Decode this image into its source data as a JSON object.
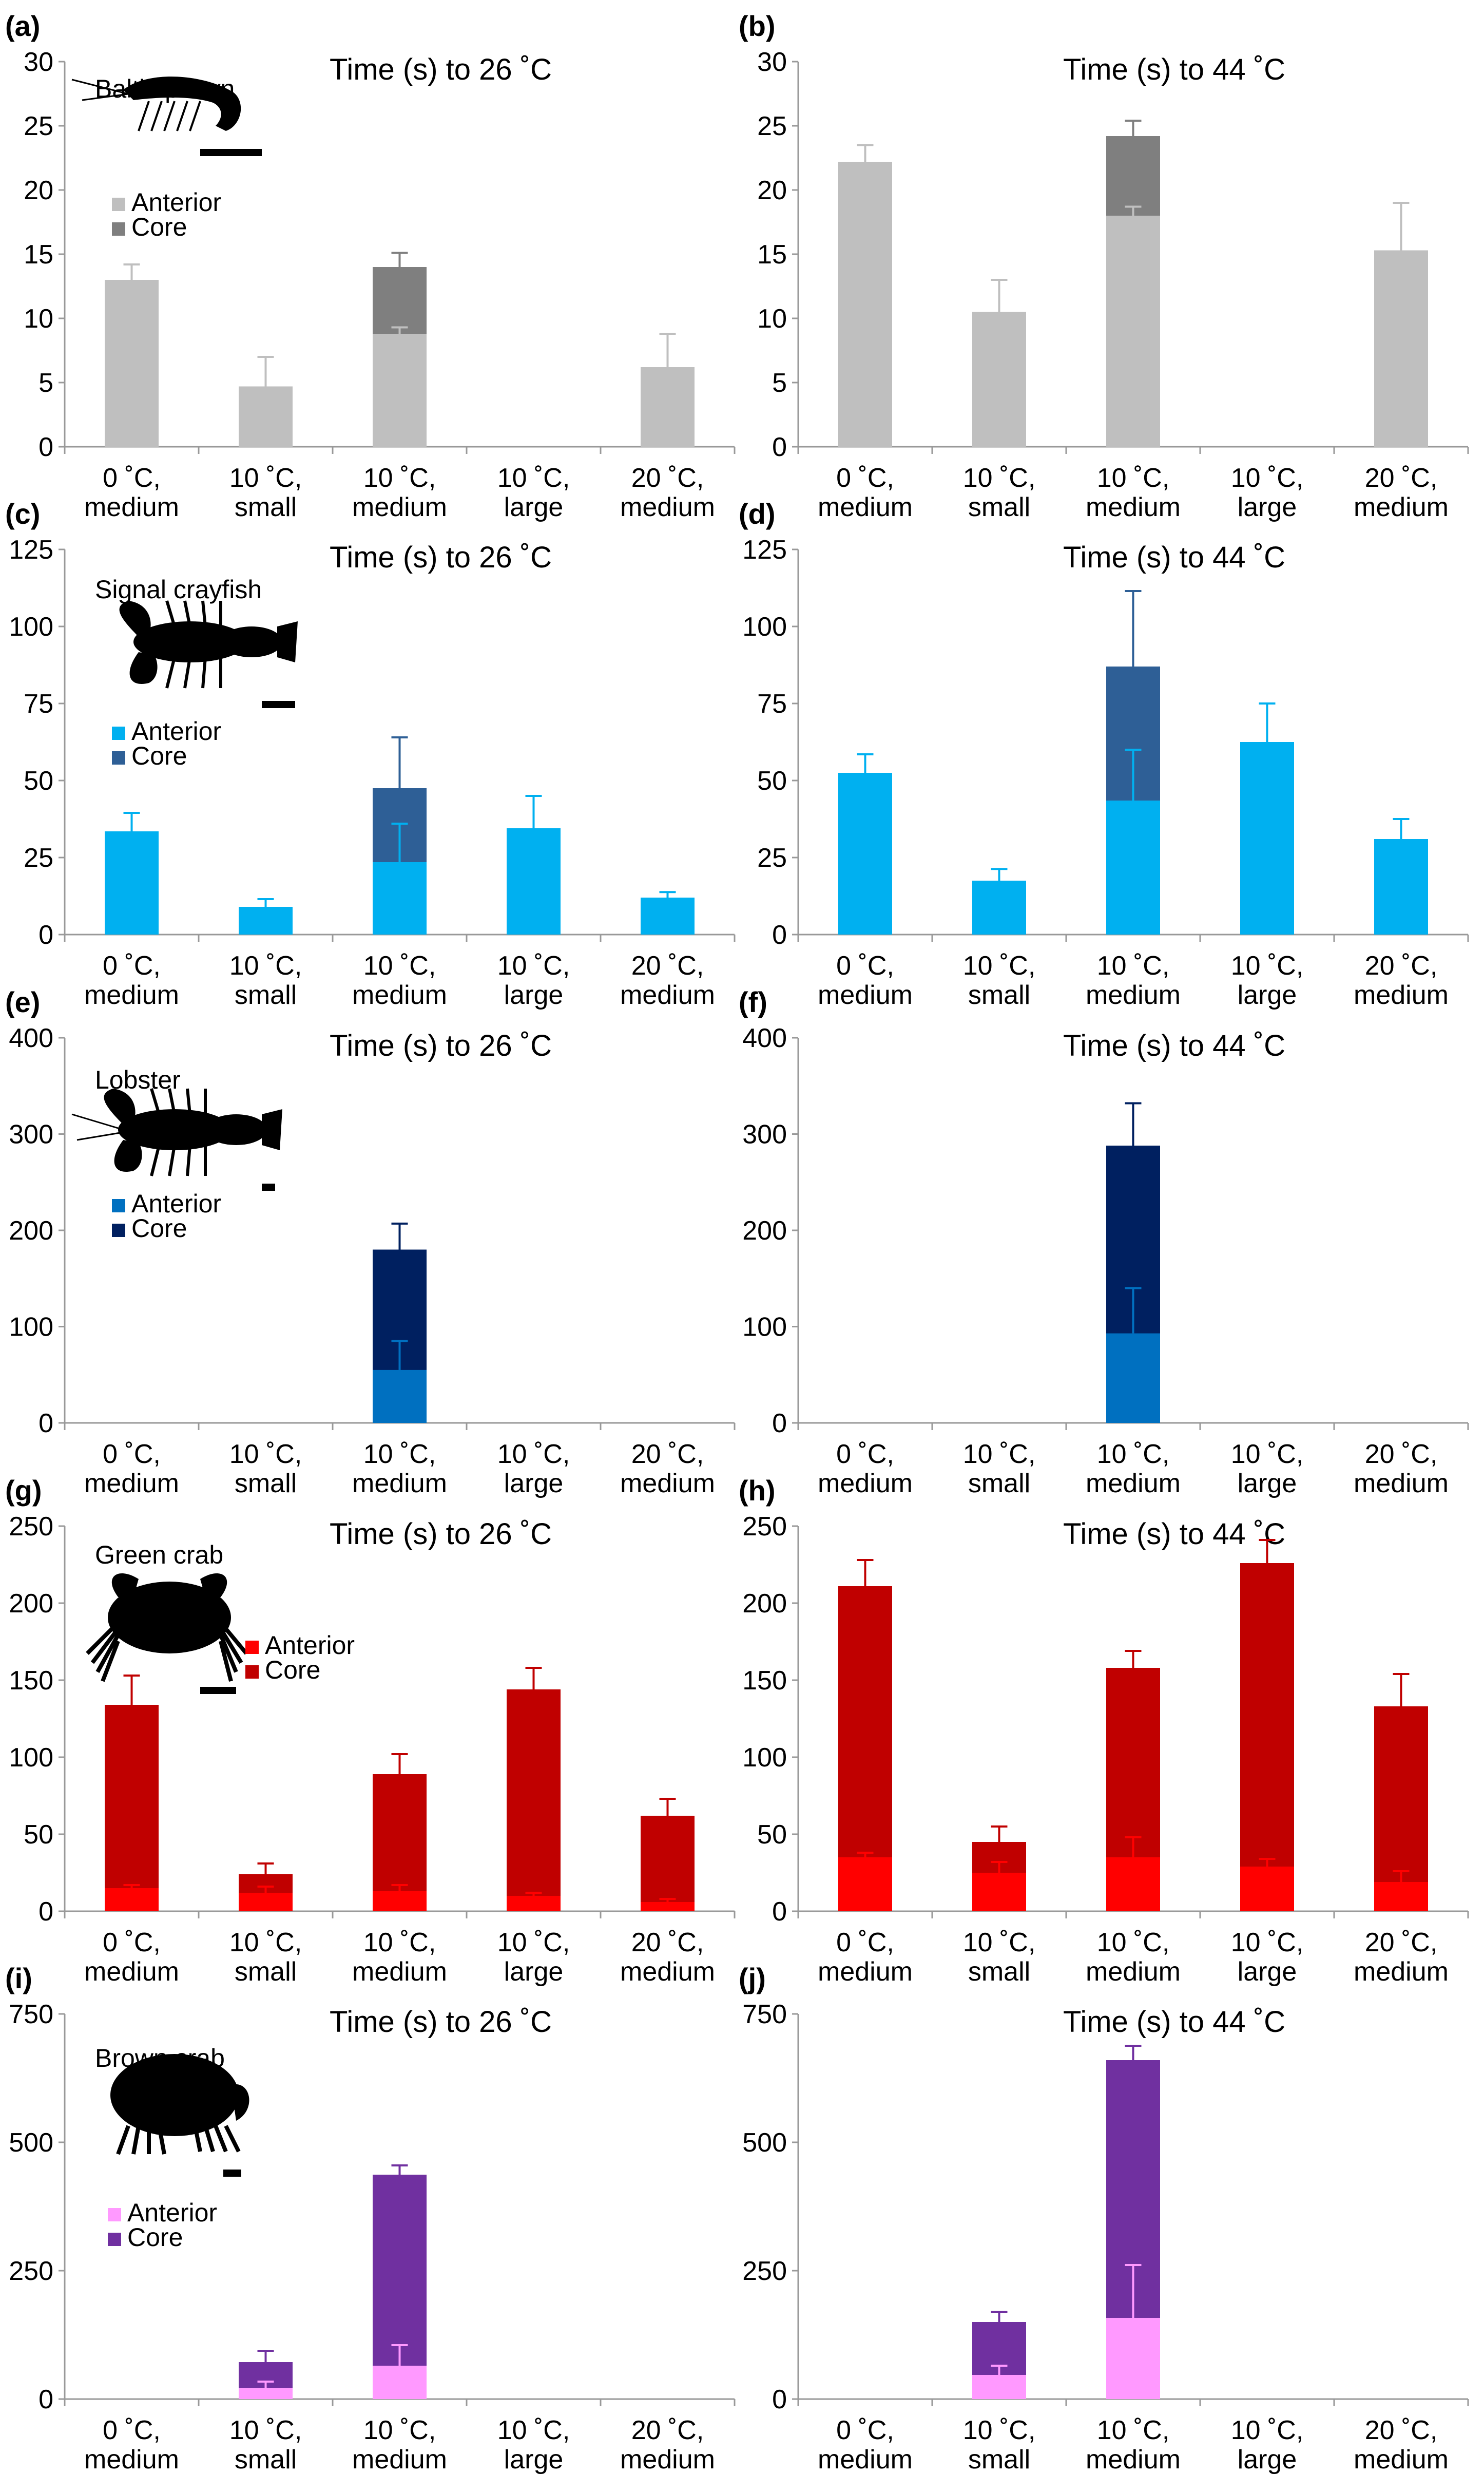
{
  "chart_data": [
    {
      "panel": "(a)",
      "title": "Time (s) to 26 ˚C",
      "type": "bar",
      "species": "Baltic prawn",
      "categories": [
        [
          "0 ˚C,",
          "medium"
        ],
        [
          "10 ˚C,",
          "small"
        ],
        [
          "10 ˚C,",
          "medium"
        ],
        [
          "10 ˚C,",
          "large"
        ],
        [
          "20 ˚C,",
          "medium"
        ]
      ],
      "ylim": [
        0,
        30
      ],
      "yticks": [
        0,
        5,
        10,
        15,
        20,
        25,
        30
      ],
      "series": [
        {
          "name": "Anterior",
          "values": [
            13.0,
            4.7,
            8.8,
            null,
            6.2
          ],
          "errors": [
            1.2,
            2.3,
            0.5,
            null,
            2.6
          ]
        },
        {
          "name": "Core",
          "values": [
            null,
            null,
            14.0,
            null,
            null
          ],
          "errors": [
            null,
            null,
            1.1,
            null,
            null
          ]
        }
      ],
      "colors": {
        "Anterior": "#bfbfbf",
        "Core": "#7f7f7f"
      },
      "legend": "top-left"
    },
    {
      "panel": "(b)",
      "title": "Time (s) to 44 ˚C",
      "type": "bar",
      "categories": [
        [
          "0 ˚C,",
          "medium"
        ],
        [
          "10 ˚C,",
          "small"
        ],
        [
          "10 ˚C,",
          "medium"
        ],
        [
          "10 ˚C,",
          "large"
        ],
        [
          "20 ˚C,",
          "medium"
        ]
      ],
      "ylim": [
        0,
        30
      ],
      "yticks": [
        0,
        5,
        10,
        15,
        20,
        25,
        30
      ],
      "series": [
        {
          "name": "Anterior",
          "values": [
            22.2,
            10.5,
            18.0,
            null,
            15.3
          ],
          "errors": [
            1.3,
            2.5,
            0.7,
            null,
            3.7
          ]
        },
        {
          "name": "Core",
          "values": [
            null,
            null,
            24.2,
            null,
            null
          ],
          "errors": [
            null,
            null,
            1.2,
            null,
            null
          ]
        }
      ],
      "colors": {
        "Anterior": "#bfbfbf",
        "Core": "#7f7f7f"
      }
    },
    {
      "panel": "(c)",
      "title": "Time (s) to 26 ˚C",
      "type": "bar",
      "species": "Signal crayfish",
      "categories": [
        [
          "0 ˚C,",
          "medium"
        ],
        [
          "10 ˚C,",
          "small"
        ],
        [
          "10 ˚C,",
          "medium"
        ],
        [
          "10 ˚C,",
          "large"
        ],
        [
          "20 ˚C,",
          "medium"
        ]
      ],
      "ylim": [
        0,
        125
      ],
      "yticks": [
        0,
        25,
        50,
        75,
        100,
        125
      ],
      "series": [
        {
          "name": "Anterior",
          "values": [
            33.5,
            9.0,
            23.5,
            34.5,
            12.0
          ],
          "errors": [
            6.0,
            2.5,
            12.5,
            10.5,
            1.8
          ]
        },
        {
          "name": "Core",
          "values": [
            null,
            null,
            47.5,
            null,
            null
          ],
          "errors": [
            null,
            null,
            16.5,
            null,
            null
          ]
        }
      ],
      "colors": {
        "Anterior": "#00b0f0",
        "Core": "#2e5f96"
      },
      "legend": "top-left"
    },
    {
      "panel": "(d)",
      "title": "Time (s) to 44 ˚C",
      "type": "bar",
      "categories": [
        [
          "0 ˚C,",
          "medium"
        ],
        [
          "10 ˚C,",
          "small"
        ],
        [
          "10 ˚C,",
          "medium"
        ],
        [
          "10 ˚C,",
          "large"
        ],
        [
          "20 ˚C,",
          "medium"
        ]
      ],
      "ylim": [
        0,
        125
      ],
      "yticks": [
        0,
        25,
        50,
        75,
        100,
        125
      ],
      "series": [
        {
          "name": "Anterior",
          "values": [
            52.5,
            17.5,
            43.5,
            62.5,
            31.0
          ],
          "errors": [
            6.0,
            3.8,
            16.5,
            12.5,
            6.5
          ]
        },
        {
          "name": "Core",
          "values": [
            null,
            null,
            87.0,
            null,
            null
          ],
          "errors": [
            null,
            null,
            24.5,
            null,
            null
          ]
        }
      ],
      "colors": {
        "Anterior": "#00b0f0",
        "Core": "#2e5f96"
      }
    },
    {
      "panel": "(e)",
      "title": "Time (s) to 26 ˚C",
      "type": "bar",
      "species": "Lobster",
      "categories": [
        [
          "0 ˚C,",
          "medium"
        ],
        [
          "10 ˚C,",
          "small"
        ],
        [
          "10 ˚C,",
          "medium"
        ],
        [
          "10 ˚C,",
          "large"
        ],
        [
          "20 ˚C,",
          "medium"
        ]
      ],
      "ylim": [
        0,
        400
      ],
      "yticks": [
        0,
        100,
        200,
        300,
        400
      ],
      "series": [
        {
          "name": "Anterior",
          "values": [
            null,
            null,
            55,
            null,
            null
          ],
          "errors": [
            null,
            null,
            30,
            null,
            null
          ]
        },
        {
          "name": "Core",
          "values": [
            null,
            null,
            180,
            null,
            null
          ],
          "errors": [
            null,
            null,
            27,
            null,
            null
          ]
        }
      ],
      "colors": {
        "Anterior": "#0070c0",
        "Core": "#002060"
      },
      "legend": "top-left"
    },
    {
      "panel": "(f)",
      "title": "Time (s) to 44 ˚C",
      "type": "bar",
      "categories": [
        [
          "0 ˚C,",
          "medium"
        ],
        [
          "10 ˚C,",
          "small"
        ],
        [
          "10 ˚C,",
          "medium"
        ],
        [
          "10 ˚C,",
          "large"
        ],
        [
          "20 ˚C,",
          "medium"
        ]
      ],
      "ylim": [
        0,
        400
      ],
      "yticks": [
        0,
        100,
        200,
        300,
        400
      ],
      "series": [
        {
          "name": "Anterior",
          "values": [
            null,
            null,
            93,
            null,
            null
          ],
          "errors": [
            null,
            null,
            47,
            null,
            null
          ]
        },
        {
          "name": "Core",
          "values": [
            null,
            null,
            288,
            null,
            null
          ],
          "errors": [
            null,
            null,
            44,
            null,
            null
          ]
        }
      ],
      "colors": {
        "Anterior": "#0070c0",
        "Core": "#002060"
      }
    },
    {
      "panel": "(g)",
      "title": "Time (s) to 26 ˚C",
      "type": "bar",
      "species": "Green crab",
      "categories": [
        [
          "0 ˚C,",
          "medium"
        ],
        [
          "10 ˚C,",
          "small"
        ],
        [
          "10 ˚C,",
          "medium"
        ],
        [
          "10 ˚C,",
          "large"
        ],
        [
          "20 ˚C,",
          "medium"
        ]
      ],
      "ylim": [
        0,
        250
      ],
      "yticks": [
        0,
        50,
        100,
        150,
        200,
        250
      ],
      "series": [
        {
          "name": "Anterior",
          "values": [
            15,
            12,
            13,
            10,
            6
          ],
          "errors": [
            2,
            4,
            4,
            2,
            2
          ]
        },
        {
          "name": "Core",
          "values": [
            134,
            24,
            89,
            144,
            62
          ],
          "errors": [
            19,
            7,
            13,
            14,
            11
          ]
        }
      ],
      "colors": {
        "Anterior": "#ff0000",
        "Core": "#c00000"
      },
      "legend": "top-left"
    },
    {
      "panel": "(h)",
      "title": "Time (s) to 44 ˚C",
      "type": "bar",
      "categories": [
        [
          "0 ˚C,",
          "medium"
        ],
        [
          "10 ˚C,",
          "small"
        ],
        [
          "10 ˚C,",
          "medium"
        ],
        [
          "10 ˚C,",
          "large"
        ],
        [
          "20 ˚C,",
          "medium"
        ]
      ],
      "ylim": [
        0,
        250
      ],
      "yticks": [
        0,
        50,
        100,
        150,
        200,
        250
      ],
      "series": [
        {
          "name": "Anterior",
          "values": [
            35,
            25,
            35,
            29,
            19
          ],
          "errors": [
            3,
            7,
            13,
            5,
            7
          ]
        },
        {
          "name": "Core",
          "values": [
            211,
            45,
            158,
            226,
            133
          ],
          "errors": [
            17,
            10,
            11,
            15,
            21
          ]
        }
      ],
      "colors": {
        "Anterior": "#ff0000",
        "Core": "#c00000"
      }
    },
    {
      "panel": "(i)",
      "title": "Time (s) to 26 ˚C",
      "type": "bar",
      "species": "Brown crab",
      "categories": [
        [
          "0 ˚C,",
          "medium"
        ],
        [
          "10 ˚C,",
          "small"
        ],
        [
          "10 ˚C,",
          "medium"
        ],
        [
          "10 ˚C,",
          "large"
        ],
        [
          "20 ˚C,",
          "medium"
        ]
      ],
      "ylim": [
        0,
        750
      ],
      "yticks": [
        0,
        250,
        500,
        750
      ],
      "series": [
        {
          "name": "Anterior",
          "values": [
            null,
            22,
            65,
            null,
            null
          ],
          "errors": [
            null,
            12,
            40,
            null,
            null
          ]
        },
        {
          "name": "Core",
          "values": [
            null,
            72,
            437,
            null,
            null
          ],
          "errors": [
            null,
            22,
            18,
            null,
            null
          ]
        }
      ],
      "colors": {
        "Anterior": "#ff99ff",
        "Core": "#7030a0"
      },
      "legend": "top-left"
    },
    {
      "panel": "(j)",
      "title": "Time (s) to 44 ˚C",
      "type": "bar",
      "categories": [
        [
          "0 ˚C,",
          "medium"
        ],
        [
          "10 ˚C,",
          "small"
        ],
        [
          "10 ˚C,",
          "medium"
        ],
        [
          "10 ˚C,",
          "large"
        ],
        [
          "20 ˚C,",
          "medium"
        ]
      ],
      "ylim": [
        0,
        750
      ],
      "yticks": [
        0,
        250,
        500,
        750
      ],
      "series": [
        {
          "name": "Anterior",
          "values": [
            null,
            47,
            158,
            null,
            null
          ],
          "errors": [
            null,
            18,
            103,
            null,
            null
          ]
        },
        {
          "name": "Core",
          "values": [
            null,
            150,
            660,
            null,
            null
          ],
          "errors": [
            null,
            20,
            28,
            null,
            null
          ]
        }
      ],
      "colors": {
        "Anterior": "#ff99ff",
        "Core": "#7030a0"
      }
    }
  ]
}
